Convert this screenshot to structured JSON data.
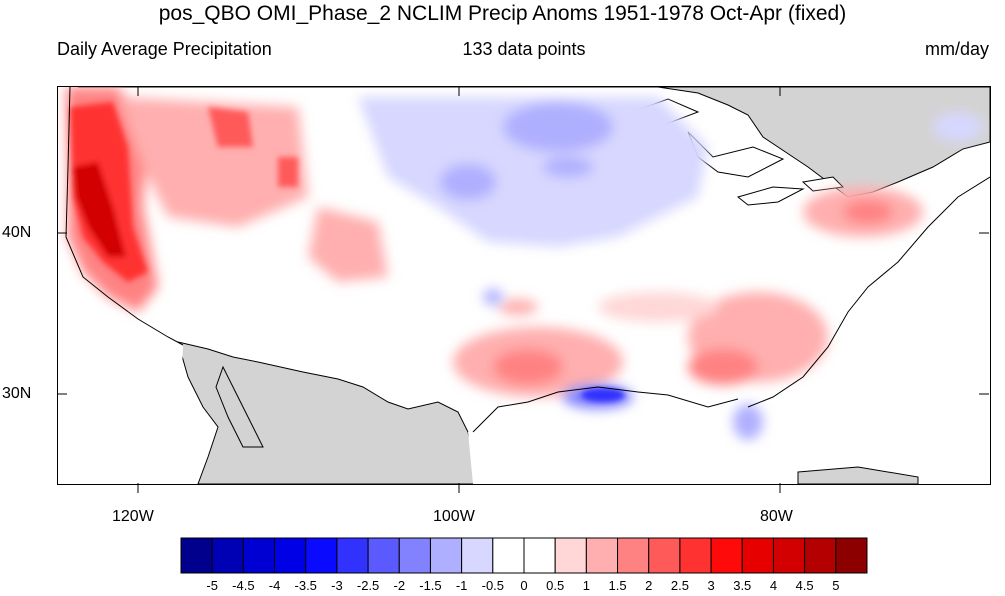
{
  "title": "pos_QBO OMI_Phase_2 NCLIM Precip Anoms 1951-1978 Oct-Apr (fixed)",
  "subtitle_left": "Daily Average Precipitation",
  "subtitle_center": "133 data points",
  "subtitle_right": "mm/day",
  "axes": {
    "lon_labels": [
      "120W",
      "100W",
      "80W"
    ],
    "lat_labels": [
      "40N",
      "30N"
    ]
  },
  "colorbar": {
    "labels": [
      "-5",
      "-4.5",
      "-4",
      "-3.5",
      "-3",
      "-2.5",
      "-2",
      "-1.5",
      "-1",
      "-0.5",
      "0",
      "0.5",
      "1",
      "1.5",
      "2",
      "2.5",
      "3",
      "3.5",
      "4",
      "4.5",
      "5"
    ],
    "colors": [
      "#00008c",
      "#0000b4",
      "#0000d2",
      "#0000e6",
      "#0a0aff",
      "#3232ff",
      "#5a5aff",
      "#8282ff",
      "#afafff",
      "#d7d7ff",
      "#ffffff",
      "#ffffff",
      "#ffd7d7",
      "#ffafaf",
      "#ff8282",
      "#ff5a5a",
      "#ff3232",
      "#ff0a0a",
      "#e60000",
      "#d20000",
      "#b40000",
      "#8c0000"
    ]
  },
  "map_colors": {
    "land_masked": "#d3d3d3",
    "water": "#ffffff",
    "coast": "#000000"
  }
}
